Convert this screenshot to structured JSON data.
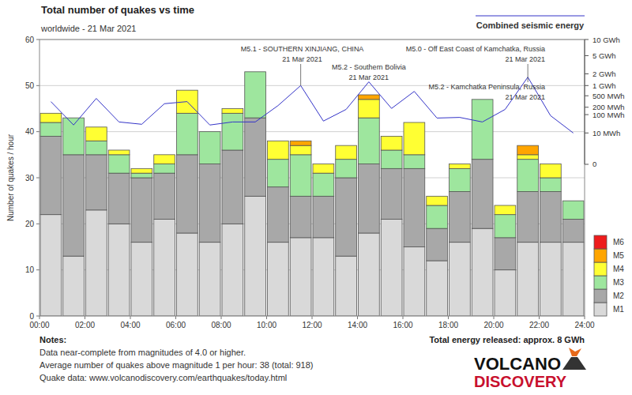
{
  "chart_data": {
    "type": "bar",
    "title": "Total number of quakes vs time",
    "subtitle": "worldwide - 21 Mar 2021",
    "ylabel": "Number of quakes / hour",
    "x": [
      0.5,
      1.5,
      2.5,
      3.5,
      4.5,
      5.5,
      6.5,
      7.5,
      8.5,
      9.5,
      10.5,
      11.5,
      12.5,
      13.5,
      14.5,
      15.5,
      16.5,
      17.5,
      18.5,
      19.5,
      20.5,
      21.5,
      22.5,
      23.5
    ],
    "xlim": [
      0,
      24
    ],
    "xticks": [
      {
        "value": 0,
        "label": "00:00"
      },
      {
        "value": 2,
        "label": "02:00"
      },
      {
        "value": 4,
        "label": "04:00"
      },
      {
        "value": 6,
        "label": "06:00"
      },
      {
        "value": 8,
        "label": "08:00"
      },
      {
        "value": 10,
        "label": "10:00"
      },
      {
        "value": 12,
        "label": "12:00"
      },
      {
        "value": 14,
        "label": "14:00"
      },
      {
        "value": 16,
        "label": "16:00"
      },
      {
        "value": 18,
        "label": "18:00"
      },
      {
        "value": 20,
        "label": "20:00"
      },
      {
        "value": 22,
        "label": "22:00"
      },
      {
        "value": 24,
        "label": "24:00"
      }
    ],
    "ylim": [
      0,
      60
    ],
    "yticks": [
      0,
      10,
      20,
      30,
      40,
      50,
      60
    ],
    "y2lim": [
      0,
      10000
    ],
    "y2ticks": [
      {
        "value": 10000,
        "label": "10 GWh"
      },
      {
        "value": 5000,
        "label": "5 GWh"
      },
      {
        "value": 2000,
        "label": "2 GWh"
      },
      {
        "value": 1000,
        "label": "1 GWh"
      },
      {
        "value": 500,
        "label": "500 MWh"
      },
      {
        "value": 200,
        "label": "200 MWh"
      },
      {
        "value": 100,
        "label": "100 MWh"
      },
      {
        "value": 10,
        "label": "10 MWh"
      },
      0
    ],
    "stacked": true,
    "grid": true,
    "legend": "right",
    "series": [
      {
        "name": "M1",
        "color": "#d9d9d9",
        "values": [
          22,
          13,
          23,
          20,
          16,
          21,
          18,
          16,
          20,
          26,
          16,
          17,
          17,
          13,
          18,
          21,
          15,
          12,
          16,
          19,
          10,
          16,
          16,
          16
        ]
      },
      {
        "name": "M2",
        "color": "#a8a8a8",
        "values": [
          17,
          22,
          12,
          11,
          14,
          10,
          17,
          17,
          16,
          17,
          12,
          9,
          9,
          17,
          15,
          11,
          17,
          7,
          11,
          15,
          7,
          11,
          11,
          5
        ]
      },
      {
        "name": "M3",
        "color": "#9ee69e",
        "values": [
          3,
          8,
          3,
          4,
          1,
          2,
          9,
          7,
          8,
          10,
          6,
          9,
          5,
          4,
          10,
          4,
          3,
          5,
          5,
          13,
          5,
          7,
          3,
          4
        ]
      },
      {
        "name": "M4",
        "color": "#ffff33",
        "values": [
          2,
          0,
          3,
          1,
          1,
          2,
          5,
          0,
          1,
          0,
          4,
          2,
          2,
          3,
          4,
          3,
          7,
          2,
          1,
          0,
          2,
          1,
          3,
          0
        ]
      },
      {
        "name": "M5",
        "color": "#ffa500",
        "values": [
          0,
          0,
          0,
          0,
          0,
          0,
          0,
          0,
          0,
          0,
          0,
          1,
          0,
          0,
          1,
          0,
          0,
          0,
          0,
          0,
          0,
          2,
          0,
          0
        ]
      },
      {
        "name": "M6",
        "color": "#ee1c1c",
        "values": [
          0,
          0,
          0,
          0,
          0,
          0,
          0,
          0,
          0,
          0,
          0,
          0,
          0,
          0,
          0,
          0,
          0,
          0,
          0,
          0,
          0,
          0,
          0,
          0
        ]
      },
      {
        "name": "Combined seismic energy",
        "type": "line",
        "axis": "y2",
        "color": "#3434c8",
        "values": [
          320,
          31,
          410,
          45,
          34,
          270,
          320,
          31,
          45,
          45,
          230,
          1000,
          50,
          165,
          1260,
          180,
          680,
          70,
          75,
          45,
          165,
          1660,
          90,
          10
        ]
      }
    ],
    "annotations": [
      {
        "text": "M5.1 - SOUTHERN XINJIANG, CHINA",
        "date": "21 Mar 2021",
        "x": 11.5
      },
      {
        "text": "M5.2 - Southern Bolivia",
        "date": "21 Mar 2021",
        "x": 14.5
      },
      {
        "text": "M5.0 - Off East Coast of Kamchatka, Russia",
        "date": "21 Mar 2021",
        "x": 21.5
      },
      {
        "text": "M5.2 - Kamchatka Peninsula, Russia",
        "date": "21 Mar 2021",
        "x": 21.5
      }
    ],
    "notes_title": "Notes:",
    "notes": [
      "Data near-complete from magnitudes of 4.0 or higher.",
      "Average number of quakes above magnitude 1 per hour: 38 (total: 918)",
      "Quake data: www.volcanodiscovery.com/earthquakes/today.html"
    ],
    "total_energy": "Total energy released: approx. 8 GWh",
    "logo": [
      "VOLCANO",
      "DISCOVERY"
    ]
  }
}
